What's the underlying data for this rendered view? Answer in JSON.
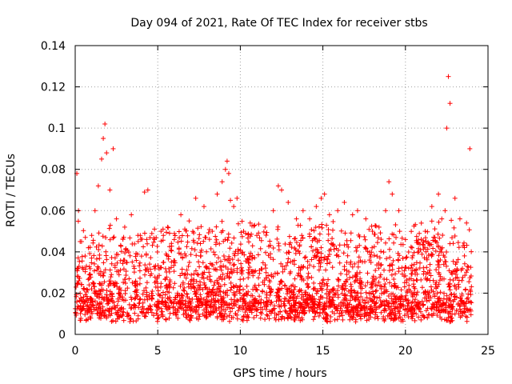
{
  "chart_data": {
    "type": "scatter",
    "title": "Day 094 of 2021, Rate Of TEC Index for receiver stbs",
    "xlabel": "GPS time / hours",
    "ylabel": "ROTI / TECUs",
    "xlim": [
      0,
      25
    ],
    "ylim": [
      0,
      0.14
    ],
    "x_ticks": [
      0,
      5,
      10,
      15,
      20,
      25
    ],
    "x_tick_labels": [
      "0",
      "5",
      "10",
      "15",
      "20",
      "25"
    ],
    "y_ticks": [
      0,
      0.02,
      0.04,
      0.06,
      0.08,
      0.1,
      0.12,
      0.14
    ],
    "y_tick_labels": [
      "0",
      "0.02",
      "0.04",
      "0.06",
      "0.08",
      "0.1",
      "0.12",
      "0.14"
    ],
    "grid": true,
    "marker": "+",
    "color": "#ff0000",
    "series": [
      {
        "name": "ROTI",
        "x": [
          0.1,
          0.2,
          0.3,
          0.6,
          0.8,
          1.0,
          1.2,
          1.4,
          1.6,
          1.7,
          1.8,
          1.9,
          2.1,
          2.3,
          2.5,
          3.0,
          3.4,
          3.8,
          4.2,
          4.4,
          4.8,
          5.2,
          5.6,
          6.0,
          6.4,
          6.9,
          7.3,
          7.8,
          8.3,
          8.6,
          8.9,
          9.1,
          9.2,
          9.3,
          9.4,
          9.6,
          9.8,
          10.2,
          10.6,
          11.0,
          11.5,
          12.0,
          12.3,
          12.5,
          12.9,
          13.4,
          13.8,
          14.2,
          14.6,
          14.9,
          15.1,
          15.4,
          15.9,
          16.3,
          16.8,
          17.1,
          17.6,
          18.0,
          18.4,
          18.8,
          19.0,
          19.2,
          19.6,
          20.0,
          20.4,
          20.8,
          21.2,
          21.6,
          22.0,
          22.2,
          22.4,
          22.5,
          22.6,
          22.7,
          23.0,
          23.3,
          23.7,
          23.9,
          0.4,
          1.5,
          2.7,
          3.6,
          5.0,
          6.2,
          7.5,
          8.0,
          9.0,
          10.0,
          10.8,
          11.8,
          12.7,
          13.6,
          14.4,
          15.6,
          16.5,
          17.3,
          18.2,
          19.4,
          20.6,
          21.4,
          22.9,
          23.5
        ],
        "y": [
          0.078,
          0.06,
          0.045,
          0.038,
          0.042,
          0.048,
          0.06,
          0.072,
          0.085,
          0.095,
          0.102,
          0.088,
          0.07,
          0.09,
          0.056,
          0.052,
          0.058,
          0.048,
          0.069,
          0.07,
          0.046,
          0.05,
          0.052,
          0.046,
          0.058,
          0.055,
          0.066,
          0.062,
          0.05,
          0.068,
          0.074,
          0.08,
          0.084,
          0.078,
          0.065,
          0.062,
          0.066,
          0.05,
          0.054,
          0.048,
          0.052,
          0.06,
          0.072,
          0.07,
          0.064,
          0.056,
          0.06,
          0.056,
          0.062,
          0.066,
          0.068,
          0.058,
          0.06,
          0.064,
          0.058,
          0.06,
          0.056,
          0.05,
          0.052,
          0.06,
          0.074,
          0.068,
          0.06,
          0.046,
          0.042,
          0.04,
          0.05,
          0.062,
          0.068,
          0.056,
          0.06,
          0.1,
          0.125,
          0.112,
          0.066,
          0.056,
          0.054,
          0.09,
          0.012,
          0.015,
          0.018,
          0.014,
          0.016,
          0.02,
          0.013,
          0.022,
          0.012,
          0.017,
          0.015,
          0.019,
          0.014,
          0.021,
          0.016,
          0.018,
          0.013,
          0.02,
          0.015,
          0.017,
          0.014,
          0.019,
          0.016,
          0.015
        ]
      }
    ]
  }
}
